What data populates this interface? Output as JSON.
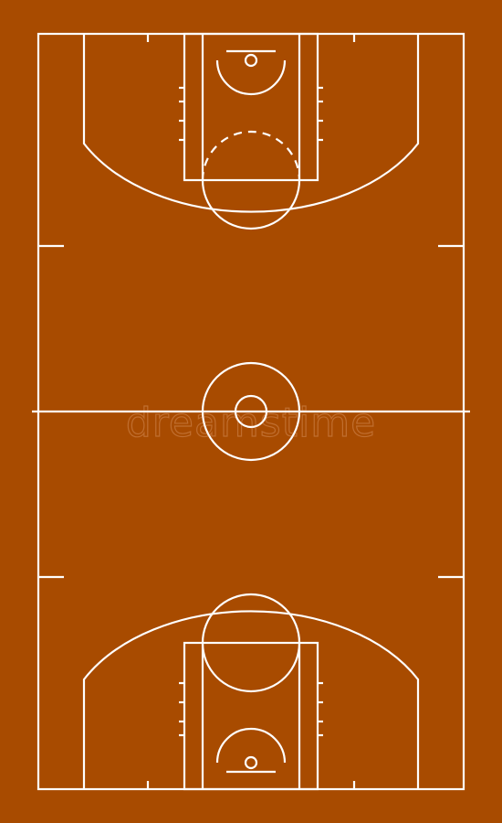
{
  "court": {
    "floor_color": "#a84b00",
    "line_color": "#ffffff"
  },
  "icons": {
    "court": "basketball-court-diagram"
  },
  "watermark": {
    "text": "dreamstime"
  }
}
